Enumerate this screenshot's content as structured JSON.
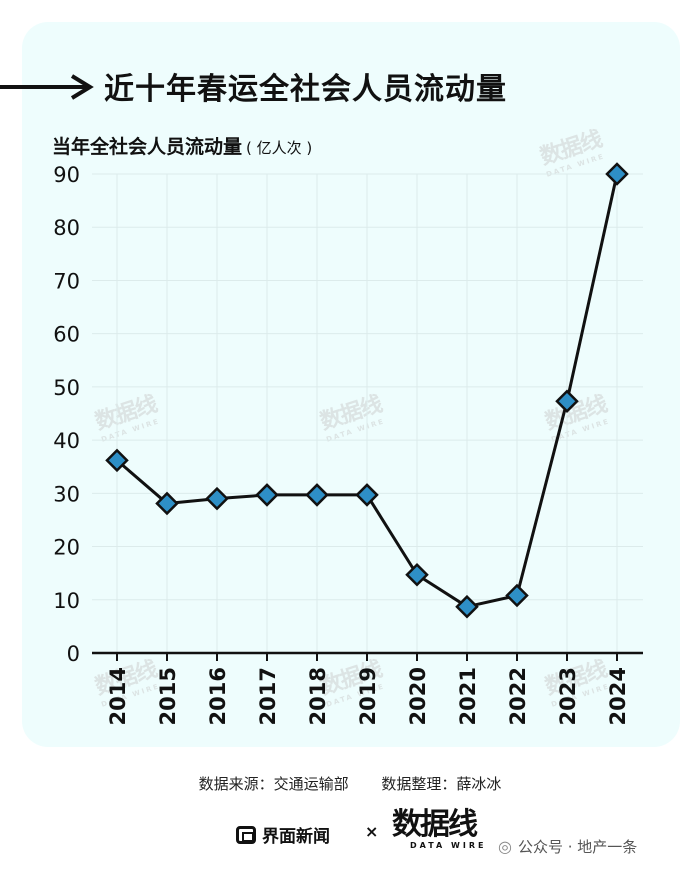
{
  "title": "近十年春运全社会人员流动量",
  "subtitle": "当年全社会人员流动量",
  "unit": "( 亿人次 )",
  "source_label": "数据来源：交通运输部",
  "editor_label": "数据整理：薛冰冰",
  "brand_jiemian": "界面新闻",
  "times_sign": "×",
  "brand_datawire": "数据线",
  "brand_datawire_en": "DATA WIRE",
  "wechat_label": "公众号 · 地产一条",
  "colors": {
    "card_bg": "#eefdfd",
    "marker_fill": "#2e8fc6",
    "line": "#111111",
    "grid": "#dcebeb"
  },
  "chart_data": {
    "type": "line",
    "title": "近十年春运全社会人员流动量",
    "ylabel": "当年全社会人员流动量 ( 亿人次 )",
    "xlabel": "",
    "categories": [
      "2014",
      "2015",
      "2016",
      "2017",
      "2018",
      "2019",
      "2020",
      "2021",
      "2022",
      "2023",
      "2024"
    ],
    "series": [
      {
        "values": [
          36.2,
          28.1,
          29.0,
          29.7,
          29.7,
          29.7,
          14.7,
          8.7,
          10.8,
          47.3,
          90.0
        ]
      }
    ],
    "ylim": [
      0,
      90
    ],
    "yticks": [
      0,
      10,
      20,
      30,
      40,
      50,
      60,
      70,
      80,
      90
    ],
    "grid": true,
    "marker": "diamond"
  }
}
